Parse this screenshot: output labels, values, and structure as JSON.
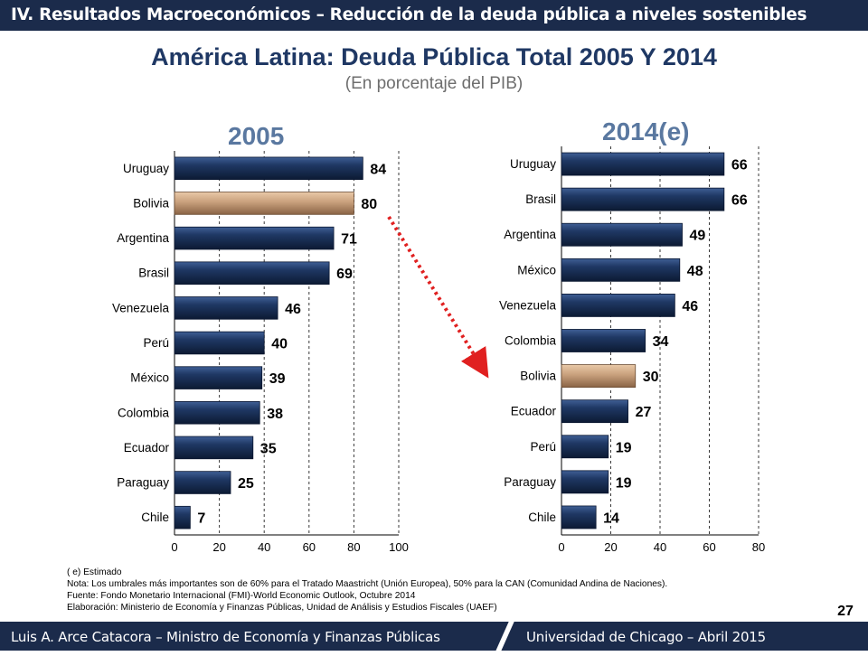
{
  "header": {
    "text": "IV. Resultados Macroeconómicos – Reducción de la deuda pública a niveles sostenibles"
  },
  "title": "América Latina: Deuda Pública Total 2005 Y 2014",
  "subtitle": "(En porcentaje del PIB)",
  "colors": {
    "bar": "#1f3864",
    "highlight": "#c8a07c",
    "header_bg": "#1b2b4b",
    "arrow": "#e02020",
    "panel_title": "#5a78a0"
  },
  "chart_data": [
    {
      "type": "bar",
      "orientation": "horizontal",
      "title": "2005",
      "categories": [
        "Uruguay",
        "Bolivia",
        "Argentina",
        "Brasil",
        "Venezuela",
        "Perú",
        "México",
        "Colombia",
        "Ecuador",
        "Paraguay",
        "Chile"
      ],
      "values": [
        84,
        80,
        71,
        69,
        46,
        40,
        39,
        38,
        35,
        25,
        7
      ],
      "highlight": "Bolivia",
      "xlim": [
        0,
        100
      ],
      "xticks": [
        0,
        20,
        40,
        60,
        80,
        100
      ],
      "grid": true
    },
    {
      "type": "bar",
      "orientation": "horizontal",
      "title": "2014(e)",
      "categories": [
        "Uruguay",
        "Brasil",
        "Argentina",
        "México",
        "Venezuela",
        "Colombia",
        "Bolivia",
        "Ecuador",
        "Perú",
        "Paraguay",
        "Chile"
      ],
      "values": [
        66,
        66,
        49,
        48,
        46,
        34,
        30,
        27,
        19,
        19,
        14
      ],
      "highlight": "Bolivia",
      "xlim": [
        0,
        80
      ],
      "xticks": [
        0,
        20,
        40,
        60,
        80
      ],
      "grid": true
    }
  ],
  "footnotes": [
    "( e) Estimado",
    "Nota: Los umbrales más importantes son de 60% para el Tratado Maastricht (Unión Europea), 50% para la CAN (Comunidad Andina de Naciones).",
    "Fuente: Fondo Monetario Internacional (FMI)-World Economic Outlook, Octubre 2014",
    "Elaboración: Ministerio de Economía y Finanzas Públicas, Unidad de Análisis y Estudios Fiscales (UAEF)"
  ],
  "footer": {
    "left": "Luis A. Arce Catacora – Ministro de Economía y Finanzas Públicas",
    "right": "Universidad de Chicago – Abril 2015",
    "page": "27"
  }
}
